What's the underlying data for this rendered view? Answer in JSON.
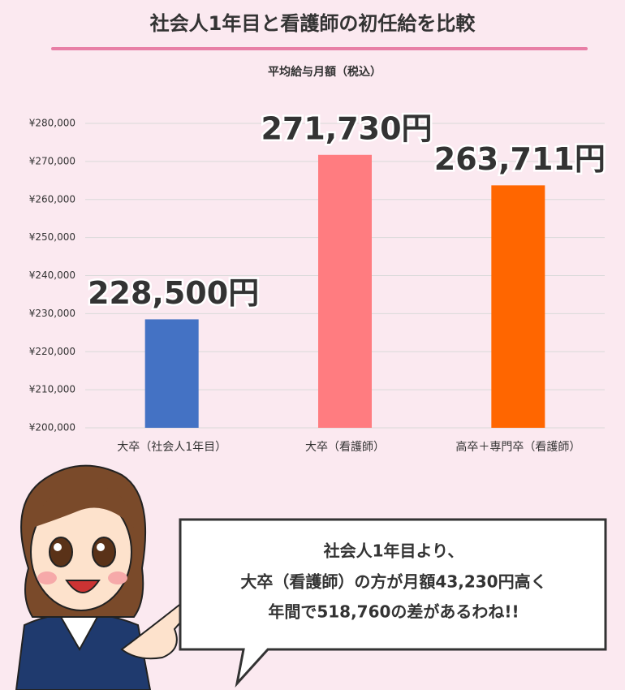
{
  "chart_data": {
    "type": "bar",
    "title": "社会人1年目と看護師の初任給を比較",
    "subtitle": "平均給与月額（税込）",
    "categories": [
      "大卒（社会人1年目）",
      "大卒（看護師）",
      "高卒＋専門卒（看護師）"
    ],
    "values": [
      228500,
      271730,
      263711
    ],
    "value_labels": [
      "228,500円",
      "271,730円",
      "263,711円"
    ],
    "colors": [
      "#4472c4",
      "#ff7c80",
      "#ff6600"
    ],
    "ylim": [
      200000,
      280000
    ],
    "yticks": [
      {
        "value": 200000,
        "label": "¥200,000"
      },
      {
        "value": 210000,
        "label": "¥210,000"
      },
      {
        "value": 220000,
        "label": "¥220,000"
      },
      {
        "value": 230000,
        "label": "¥230,000"
      },
      {
        "value": 240000,
        "label": "¥240,000"
      },
      {
        "value": 250000,
        "label": "¥250,000"
      },
      {
        "value": 260000,
        "label": "¥260,000"
      },
      {
        "value": 270000,
        "label": "¥270,000"
      },
      {
        "value": 280000,
        "label": "¥280,000"
      }
    ],
    "grid": true
  },
  "callout": {
    "lines": [
      "社会人1年目より、",
      "大卒（看護師）の方が月額43,230円高く",
      "年間で518,760の差があるわね!!"
    ]
  }
}
